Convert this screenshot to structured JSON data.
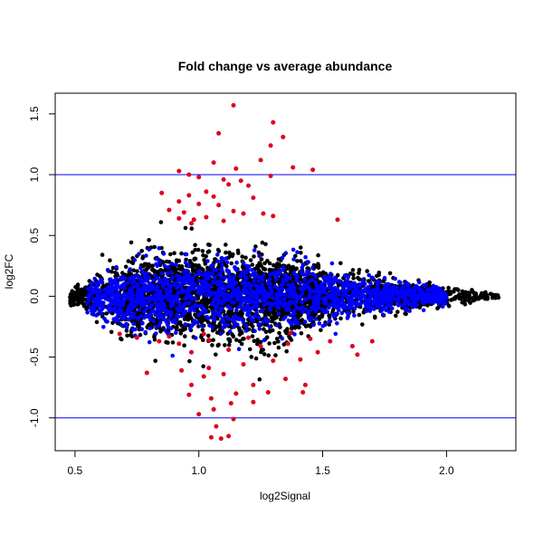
{
  "chart_data": {
    "type": "scatter",
    "title": "Fold change vs average abundance",
    "xlabel": "log2Signal",
    "ylabel": "log2FC",
    "xlim": [
      0.42,
      2.28
    ],
    "ylim": [
      -1.27,
      1.67
    ],
    "x_ticks": [
      {
        "value": 0.5,
        "label": "0.5"
      },
      {
        "value": 1.0,
        "label": "1.0"
      },
      {
        "value": 1.5,
        "label": "1.5"
      },
      {
        "value": 2.0,
        "label": "2.0"
      }
    ],
    "y_ticks": [
      {
        "value": -1.0,
        "label": "-1.0"
      },
      {
        "value": -0.5,
        "label": "-0.5"
      },
      {
        "value": 0.0,
        "label": "0.0"
      },
      {
        "value": 0.5,
        "label": "0.5"
      },
      {
        "value": 1.0,
        "label": "1.0"
      },
      {
        "value": 1.5,
        "label": "1.5"
      }
    ],
    "reference_lines": [
      {
        "axis": "y",
        "value": 1.0,
        "color": "#0000ff"
      },
      {
        "axis": "y",
        "value": -1.0,
        "color": "#0000ff"
      }
    ],
    "colors": {
      "black": "#000000",
      "blue": "#0000ff",
      "red": "#e00020"
    },
    "series": [
      {
        "color": "#e00020",
        "points": [
          [
            1.14,
            1.57
          ],
          [
            1.3,
            1.43
          ],
          [
            1.08,
            1.34
          ],
          [
            1.29,
            1.24
          ],
          [
            1.34,
            1.31
          ],
          [
            1.06,
            1.1
          ],
          [
            1.25,
            1.12
          ],
          [
            1.15,
            1.05
          ],
          [
            0.92,
            1.03
          ],
          [
            0.96,
            1.0
          ],
          [
            1.0,
            0.98
          ],
          [
            1.1,
            0.96
          ],
          [
            1.17,
            0.95
          ],
          [
            1.38,
            1.06
          ],
          [
            1.46,
            1.04
          ],
          [
            1.29,
            0.99
          ],
          [
            1.12,
            0.92
          ],
          [
            1.2,
            0.91
          ],
          [
            1.03,
            0.86
          ],
          [
            0.85,
            0.85
          ],
          [
            0.96,
            0.83
          ],
          [
            1.06,
            0.82
          ],
          [
            1.22,
            0.81
          ],
          [
            0.92,
            0.78
          ],
          [
            1.0,
            0.76
          ],
          [
            1.08,
            0.75
          ],
          [
            0.88,
            0.71
          ],
          [
            1.14,
            0.7
          ],
          [
            0.94,
            0.69
          ],
          [
            1.18,
            0.68
          ],
          [
            1.26,
            0.68
          ],
          [
            1.3,
            0.66
          ],
          [
            1.03,
            0.65
          ],
          [
            0.92,
            0.64
          ],
          [
            0.98,
            0.63
          ],
          [
            1.1,
            0.62
          ],
          [
            1.56,
            0.63
          ],
          [
            0.97,
            0.6
          ],
          [
            1.14,
            -1.01
          ],
          [
            1.07,
            -1.07
          ],
          [
            1.09,
            -1.17
          ],
          [
            1.05,
            -1.16
          ],
          [
            1.12,
            -1.15
          ],
          [
            1.0,
            -0.97
          ],
          [
            1.06,
            -0.93
          ],
          [
            1.13,
            -0.88
          ],
          [
            1.22,
            -0.87
          ],
          [
            1.05,
            -0.84
          ],
          [
            0.96,
            -0.81
          ],
          [
            1.15,
            -0.8
          ],
          [
            1.28,
            -0.79
          ],
          [
            1.42,
            -0.79
          ],
          [
            1.43,
            -0.73
          ],
          [
            0.97,
            -0.73
          ],
          [
            1.22,
            -0.73
          ],
          [
            1.35,
            -0.68
          ],
          [
            1.02,
            -0.66
          ],
          [
            1.1,
            -0.64
          ],
          [
            0.93,
            -0.61
          ],
          [
            1.04,
            -0.59
          ],
          [
            0.79,
            -0.63
          ],
          [
            1.18,
            -0.56
          ],
          [
            1.3,
            -0.53
          ],
          [
            1.41,
            -0.52
          ],
          [
            1.64,
            -0.48
          ],
          [
            1.48,
            -0.46
          ],
          [
            0.97,
            -0.46
          ],
          [
            1.12,
            -0.44
          ],
          [
            1.25,
            -0.41
          ],
          [
            1.36,
            -0.39
          ],
          [
            1.7,
            -0.37
          ],
          [
            1.62,
            -0.41
          ],
          [
            1.53,
            -0.37
          ],
          [
            0.92,
            -0.39
          ],
          [
            0.84,
            -0.37
          ],
          [
            1.04,
            -0.36
          ],
          [
            1.2,
            -0.34
          ],
          [
            1.45,
            -0.35
          ],
          [
            0.75,
            -0.34
          ],
          [
            0.88,
            -0.33
          ],
          [
            1.02,
            -0.31
          ],
          [
            1.37,
            -0.3
          ],
          [
            0.68,
            -0.31
          ]
        ]
      }
    ]
  }
}
